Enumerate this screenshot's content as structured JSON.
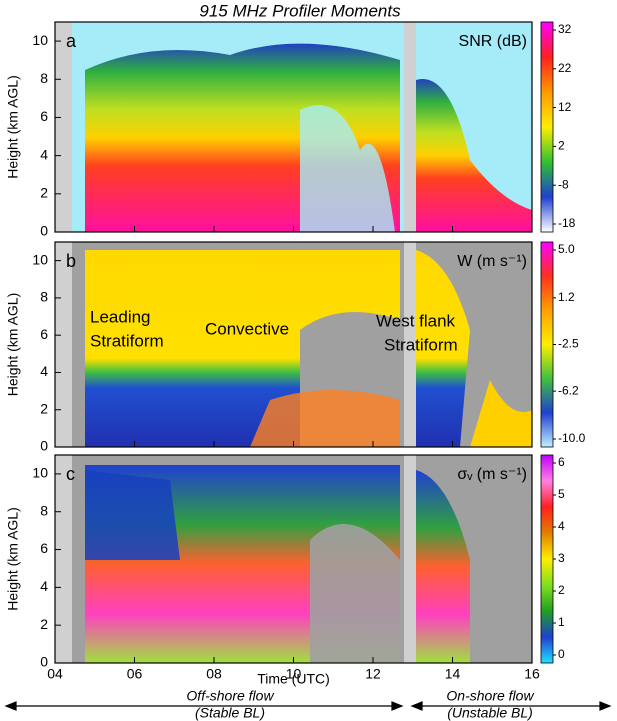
{
  "chart_data": [
    {
      "type": "heatmap",
      "title": "915 MHz Profiler Moments",
      "panel_label": "a",
      "ylabel": "Height (km AGL)",
      "ylim": [
        0,
        11
      ],
      "yticks": [
        0,
        2,
        4,
        6,
        8,
        10
      ],
      "colorbar": {
        "label": "SNR (dB)",
        "lim": [
          -18,
          32
        ],
        "ticks": [
          32,
          22,
          12,
          2,
          -8,
          -18
        ],
        "colors": [
          "#ff00ff",
          "#ff2020",
          "#ff9900",
          "#ffee00",
          "#30c030",
          "#2040d0",
          "#ffffff"
        ]
      }
    },
    {
      "type": "heatmap",
      "panel_label": "b",
      "ylabel": "Height (km AGL)",
      "ylim": [
        0,
        11
      ],
      "yticks": [
        0,
        2,
        4,
        6,
        8,
        10
      ],
      "colorbar": {
        "label": "W (m s⁻¹)",
        "lim": [
          -10,
          5
        ],
        "ticks": [
          {
            "value": 5,
            "label": "5.0"
          },
          1.2,
          -2.5,
          -6.2,
          {
            "value": -10,
            "label": "-10.0"
          }
        ],
        "colors": [
          "#ff00ff",
          "#ff3020",
          "#ffa000",
          "#ffee00",
          "#40c040",
          "#2040d0",
          "#c0f0ff"
        ]
      },
      "annotations": [
        "Leading",
        "Stratiform",
        "Convective",
        "West flank",
        "Stratiform"
      ]
    },
    {
      "type": "heatmap",
      "panel_label": "c",
      "ylabel": "Height (km AGL)",
      "xlabel": "Time (UTC)",
      "xlim": [
        4,
        16
      ],
      "xticks": [
        {
          "value": 4,
          "label": "04"
        },
        {
          "value": 6,
          "label": "06"
        },
        {
          "value": 8,
          "label": "08"
        },
        10,
        12,
        14,
        16
      ],
      "ylim": [
        0,
        11
      ],
      "yticks": [
        0,
        2,
        4,
        6,
        8,
        10
      ],
      "colorbar": {
        "label": "σᵥ (m s⁻¹)",
        "lim": [
          0,
          6
        ],
        "ticks": [
          6,
          5,
          4,
          3,
          2,
          1,
          0
        ],
        "colors": [
          "#c000ff",
          "#ff80e0",
          "#ff2020",
          "#e08000",
          "#ffee00",
          "#80e020",
          "#20a020",
          "#2040d0",
          "#20e0ff"
        ]
      },
      "annotations": [
        "Off-shore flow",
        "(Stable BL)",
        "On-shore flow",
        "(Unstable BL)"
      ]
    }
  ]
}
